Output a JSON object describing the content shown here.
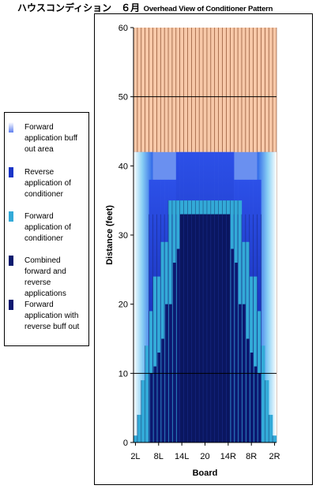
{
  "title": {
    "jp": "ハウスコンディション　６月",
    "en": "Overhead View of Conditioner Pattern"
  },
  "legend": {
    "items": [
      {
        "label": "Forward application buff out area",
        "color": "#c8d4ff",
        "icon": "gradient-swatch-light"
      },
      {
        "label": "Reverse application of conditioner",
        "color": "#1a35c8",
        "icon": "blue-swatch"
      },
      {
        "label": "Forward application of conditioner",
        "color": "#33aad8",
        "icon": "cyan-swatch"
      },
      {
        "label": "Combined forward and reverse applications",
        "color": "#0a1a6e",
        "icon": "navy-swatch"
      },
      {
        "label": "Forward application with reverse buff out",
        "color": "#0c1870",
        "icon": "dark-navy-swatch"
      }
    ]
  },
  "colors": {
    "lanes": "#f7c8a8",
    "lane_lines": "#7a3a1a",
    "navy": "#0c1870",
    "cyan": "#33aad8",
    "blue": "#1a35c8",
    "light": "#ffffff"
  },
  "chart_data": {
    "type": "area",
    "title": "ハウスコンディション　６月 Overhead View of Conditioner Pattern",
    "xlabel": "Board",
    "ylabel": "Distance (feet)",
    "ylim": [
      0,
      60
    ],
    "yticks": [
      0,
      10,
      20,
      30,
      40,
      50,
      60
    ],
    "xticks": [
      "2L",
      "8L",
      "14L",
      "20",
      "14R",
      "8R",
      "2R"
    ],
    "boards": [
      "2L",
      "3L",
      "4L",
      "5L",
      "6L",
      "7L",
      "8L",
      "9L",
      "10L",
      "11L",
      "12L",
      "13L",
      "14L",
      "15L",
      "16L",
      "17L",
      "18L",
      "19L",
      "20",
      "19R",
      "18R",
      "17R",
      "16R",
      "15R",
      "14R",
      "13R",
      "12R",
      "11R",
      "10R",
      "9R",
      "8R",
      "7R",
      "6R",
      "5R",
      "4R",
      "3R",
      "2R"
    ],
    "gridlines": [
      10,
      50
    ],
    "conditioner_length": 42,
    "series": [
      {
        "name": "Forward application buff out area",
        "values": [
          42,
          42,
          42,
          42,
          42,
          42,
          42,
          42,
          42,
          42,
          42,
          42,
          42,
          42,
          42,
          42,
          42,
          42,
          42,
          42,
          42,
          42,
          42,
          42,
          42,
          42,
          42,
          42,
          42,
          42,
          42,
          42,
          42,
          42,
          42,
          42,
          42
        ]
      },
      {
        "name": "Reverse application of conditioner",
        "values": [
          0,
          0,
          0,
          0,
          38,
          38,
          38,
          38,
          38,
          38,
          38,
          42,
          42,
          42,
          42,
          42,
          42,
          42,
          42,
          42,
          42,
          42,
          42,
          42,
          42,
          42,
          38,
          38,
          38,
          38,
          38,
          38,
          38,
          0,
          0,
          0,
          0
        ]
      },
      {
        "name": "Forward application of conditioner",
        "values": [
          1,
          4,
          9,
          14,
          19,
          24,
          24,
          29,
          29,
          35,
          35,
          35,
          35,
          35,
          35,
          35,
          35,
          35,
          35,
          35,
          35,
          35,
          35,
          35,
          35,
          35,
          35,
          35,
          29,
          29,
          24,
          24,
          19,
          14,
          9,
          4,
          1
        ]
      },
      {
        "name": "Combined forward and reverse applications",
        "values": [
          0,
          0,
          0,
          0,
          0,
          0,
          0,
          0,
          0,
          0,
          0,
          0,
          33,
          33,
          33,
          33,
          33,
          33,
          33,
          33,
          33,
          33,
          33,
          33,
          33,
          0,
          0,
          0,
          0,
          0,
          0,
          0,
          0,
          0,
          0,
          0,
          0
        ]
      },
      {
        "name": "Forward application with reverse buff out",
        "values": [
          0,
          0,
          0,
          0,
          10,
          11,
          13,
          15,
          20,
          20,
          26,
          28,
          33,
          33,
          33,
          33,
          33,
          33,
          33,
          33,
          33,
          33,
          33,
          33,
          33,
          28,
          26,
          20,
          20,
          15,
          13,
          11,
          10,
          0,
          0,
          0,
          0
        ]
      }
    ]
  }
}
